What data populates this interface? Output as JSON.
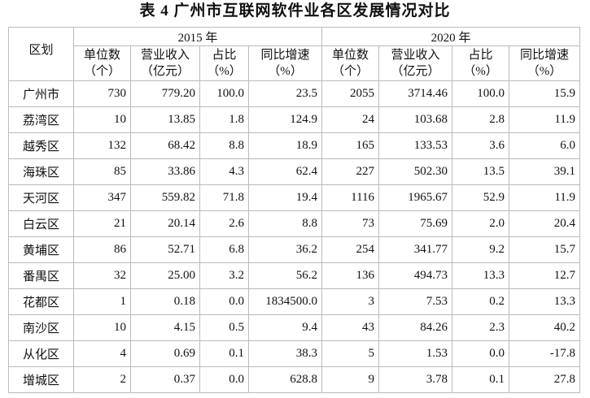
{
  "header": {
    "title": "表 4  广州市互联网软件业各区发展情况对比"
  },
  "table": {
    "region_label": "区划",
    "years": [
      "2015 年",
      "2020 年"
    ],
    "columns": [
      [
        "单位数",
        "（个）"
      ],
      [
        "营业收入",
        "（亿元）"
      ],
      [
        "占比",
        "（%）"
      ],
      [
        "同比增速",
        "（%）"
      ],
      [
        "单位数",
        "（个）"
      ],
      [
        "营业收入",
        "（亿元）"
      ],
      [
        "占比",
        "（%）"
      ],
      [
        "同比增速",
        "（%）"
      ]
    ],
    "rows": [
      [
        "广州市",
        "730",
        "779.20",
        "100.0",
        "23.5",
        "2055",
        "3714.46",
        "100.0",
        "15.9"
      ],
      [
        "荔湾区",
        "10",
        "13.85",
        "1.8",
        "124.9",
        "24",
        "103.68",
        "2.8",
        "11.9"
      ],
      [
        "越秀区",
        "132",
        "68.42",
        "8.8",
        "18.9",
        "165",
        "133.53",
        "3.6",
        "6.0"
      ],
      [
        "海珠区",
        "85",
        "33.86",
        "4.3",
        "62.4",
        "227",
        "502.30",
        "13.5",
        "39.1"
      ],
      [
        "天河区",
        "347",
        "559.82",
        "71.8",
        "19.4",
        "1116",
        "1965.67",
        "52.9",
        "11.9"
      ],
      [
        "白云区",
        "21",
        "20.14",
        "2.6",
        "8.8",
        "73",
        "75.69",
        "2.0",
        "20.4"
      ],
      [
        "黄埔区",
        "86",
        "52.71",
        "6.8",
        "36.2",
        "254",
        "341.77",
        "9.2",
        "15.7"
      ],
      [
        "番禺区",
        "32",
        "25.00",
        "3.2",
        "56.2",
        "136",
        "494.73",
        "13.3",
        "12.7"
      ],
      [
        "花都区",
        "1",
        "0.18",
        "0.0",
        "1834500.0",
        "3",
        "7.53",
        "0.2",
        "13.3"
      ],
      [
        "南沙区",
        "10",
        "4.15",
        "0.5",
        "9.4",
        "43",
        "84.26",
        "2.3",
        "40.2"
      ],
      [
        "从化区",
        "4",
        "0.69",
        "0.1",
        "38.3",
        "5",
        "1.53",
        "0.0",
        "-17.8"
      ],
      [
        "增城区",
        "2",
        "0.37",
        "0.0",
        "628.8",
        "9",
        "3.78",
        "0.1",
        "27.8"
      ]
    ]
  }
}
